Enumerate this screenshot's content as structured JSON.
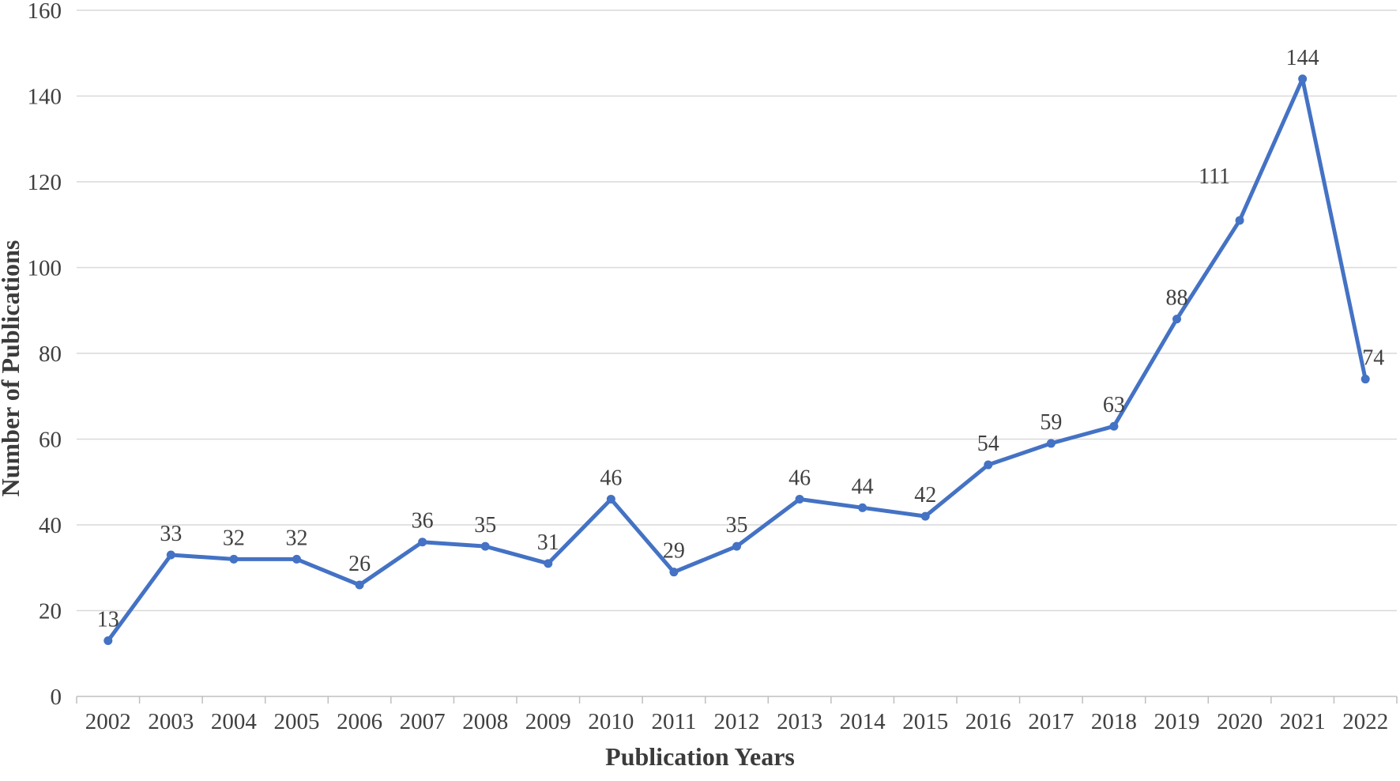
{
  "chart_data": {
    "type": "line",
    "title": "",
    "xlabel": "Publication Years",
    "ylabel": "Number of Publications",
    "categories": [
      "2002",
      "2003",
      "2004",
      "2005",
      "2006",
      "2007",
      "2008",
      "2009",
      "2010",
      "2011",
      "2012",
      "2013",
      "2014",
      "2015",
      "2016",
      "2017",
      "2018",
      "2019",
      "2020",
      "2021",
      "2022"
    ],
    "series": [
      {
        "name": "Number of Publications",
        "values": [
          13,
          33,
          32,
          32,
          26,
          36,
          35,
          31,
          46,
          29,
          35,
          46,
          44,
          42,
          54,
          59,
          63,
          88,
          111,
          144,
          74
        ]
      }
    ],
    "data_labels": [
      13,
      33,
      32,
      32,
      26,
      36,
      35,
      31,
      46,
      29,
      35,
      46,
      44,
      42,
      54,
      59,
      63,
      88,
      111,
      144,
      74
    ],
    "ylim": [
      0,
      160
    ],
    "ytick_step": 20,
    "ytick_labels": [
      "0",
      "20",
      "40",
      "60",
      "80",
      "100",
      "120",
      "140",
      "160"
    ],
    "grid": "horizontal",
    "legend_position": "none",
    "marker": "circle",
    "colors": {
      "line": "#4472C4",
      "marker": "#4472C4",
      "gridline": "#D9D9D9",
      "axis_line": "#BFBFBF",
      "tick_text": "#404040",
      "data_label_text": "#404040",
      "axis_title_text": "#3B3B3B"
    },
    "label_offsets": {
      "2020": [
        -32,
        -29
      ],
      "2022": [
        10,
        0
      ]
    }
  }
}
